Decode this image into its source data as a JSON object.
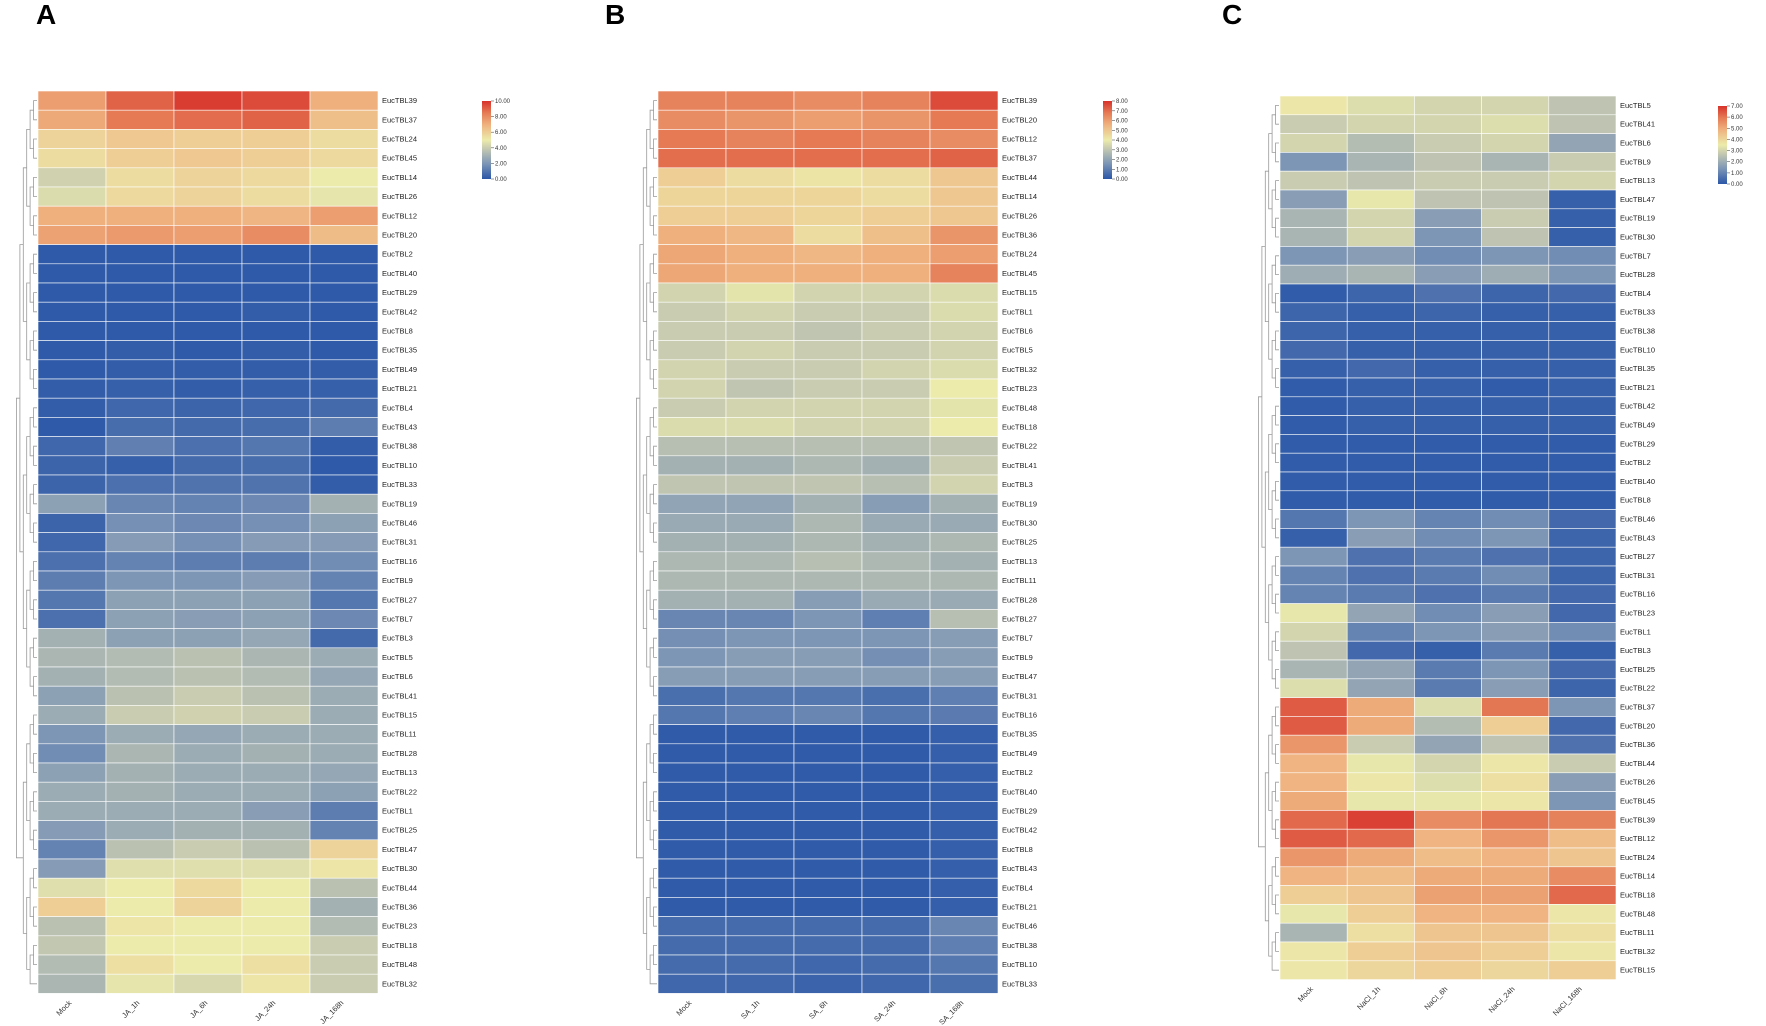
{
  "chart_data": [
    {
      "type": "heatmap",
      "panel": "A",
      "columns": [
        "Mock",
        "JA_1h",
        "JA_6h",
        "JA_24h",
        "JA_168h"
      ],
      "rows": [
        "EucTBL39",
        "EucTBL37",
        "EucTBL24",
        "EucTBL45",
        "EucTBL14",
        "EucTBL26",
        "EucTBL12",
        "EucTBL20",
        "EucTBL2",
        "EucTBL40",
        "EucTBL29",
        "EucTBL42",
        "EucTBL8",
        "EucTBL35",
        "EucTBL49",
        "EucTBL21",
        "EucTBL4",
        "EucTBL43",
        "EucTBL38",
        "EucTBL10",
        "EucTBL33",
        "EucTBL19",
        "EucTBL46",
        "EucTBL31",
        "EucTBL16",
        "EucTBL9",
        "EucTBL27",
        "EucTBL7",
        "EucTBL3",
        "EucTBL5",
        "EucTBL6",
        "EucTBL41",
        "EucTBL15",
        "EucTBL11",
        "EucTBL28",
        "EucTBL13",
        "EucTBL22",
        "EucTBL1",
        "EucTBL25",
        "EucTBL47",
        "EucTBL30",
        "EucTBL44",
        "EucTBL36",
        "EucTBL23",
        "EucTBL18",
        "EucTBL48",
        "EucTBL32"
      ],
      "values": [
        [
          7.5,
          9.0,
          9.8,
          9.5,
          7.0
        ],
        [
          7.2,
          8.5,
          8.8,
          9.0,
          6.5
        ],
        [
          5.8,
          6.2,
          6.0,
          6.0,
          5.5
        ],
        [
          5.5,
          6.0,
          6.2,
          6.0,
          5.6
        ],
        [
          4.2,
          5.5,
          5.8,
          5.6,
          5.0
        ],
        [
          4.5,
          5.6,
          5.8,
          5.5,
          4.8
        ],
        [
          7.0,
          7.0,
          7.0,
          6.8,
          7.5
        ],
        [
          7.4,
          7.6,
          7.5,
          8.0,
          6.6
        ],
        [
          0.1,
          0.1,
          0.1,
          0.1,
          0.1
        ],
        [
          0.1,
          0.1,
          0.1,
          0.1,
          0.1
        ],
        [
          0.1,
          0.1,
          0.1,
          0.1,
          0.1
        ],
        [
          0.1,
          0.1,
          0.1,
          0.2,
          0.1
        ],
        [
          0.1,
          0.1,
          0.1,
          0.1,
          0.1
        ],
        [
          0.1,
          0.2,
          0.1,
          0.2,
          0.1
        ],
        [
          0.1,
          0.2,
          0.2,
          0.2,
          0.2
        ],
        [
          0.2,
          0.3,
          0.2,
          0.3,
          0.3
        ],
        [
          0.2,
          0.5,
          0.4,
          0.5,
          0.6
        ],
        [
          0.1,
          0.7,
          0.6,
          0.7,
          1.2
        ],
        [
          0.5,
          1.3,
          0.8,
          1.0,
          0.2
        ],
        [
          0.4,
          0.3,
          0.6,
          0.7,
          0.1
        ],
        [
          0.4,
          0.8,
          0.9,
          0.9,
          0.2
        ],
        [
          2.4,
          1.5,
          1.4,
          1.6,
          3.0
        ],
        [
          0.4,
          1.8,
          1.6,
          1.8,
          2.4
        ],
        [
          0.5,
          2.2,
          1.8,
          2.2,
          2.2
        ],
        [
          0.8,
          1.4,
          1.2,
          1.2,
          1.7
        ],
        [
          1.2,
          2.0,
          2.0,
          2.2,
          1.4
        ],
        [
          1.0,
          2.4,
          2.4,
          2.4,
          1.0
        ],
        [
          0.8,
          2.4,
          2.3,
          2.4,
          1.6
        ],
        [
          3.0,
          2.4,
          2.4,
          2.6,
          0.6
        ],
        [
          3.2,
          3.4,
          3.6,
          3.2,
          2.8
        ],
        [
          3.0,
          3.4,
          3.6,
          3.4,
          2.6
        ],
        [
          2.4,
          3.6,
          4.0,
          3.6,
          2.8
        ],
        [
          2.8,
          4.0,
          4.2,
          4.0,
          2.8
        ],
        [
          2.0,
          2.8,
          2.6,
          2.8,
          2.8
        ],
        [
          1.7,
          3.2,
          2.8,
          3.0,
          2.8
        ],
        [
          2.4,
          3.0,
          2.8,
          2.8,
          2.6
        ],
        [
          2.8,
          3.0,
          2.8,
          2.8,
          2.4
        ],
        [
          2.8,
          2.8,
          2.8,
          2.3,
          1.2
        ],
        [
          2.2,
          2.8,
          3.0,
          3.0,
          1.4
        ],
        [
          1.4,
          3.6,
          4.0,
          3.6,
          5.8
        ],
        [
          2.2,
          4.6,
          4.6,
          4.6,
          5.2
        ],
        [
          4.6,
          5.0,
          5.6,
          5.0,
          3.6
        ],
        [
          6.0,
          5.0,
          5.8,
          5.0,
          3.0
        ],
        [
          3.6,
          5.2,
          5.0,
          5.0,
          3.4
        ],
        [
          3.8,
          5.0,
          5.0,
          5.0,
          4.0
        ],
        [
          3.4,
          5.4,
          5.0,
          5.4,
          4.0
        ],
        [
          3.2,
          4.8,
          4.4,
          5.2,
          4.0
        ]
      ],
      "colorbar": {
        "min": 0,
        "max": 10,
        "ticks": [
          "10.00",
          "8.00",
          "6.00",
          "4.00",
          "2.00",
          "0.00"
        ]
      }
    },
    {
      "type": "heatmap",
      "panel": "B",
      "columns": [
        "Mock",
        "SA_1h",
        "SA_6h",
        "SA_24h",
        "SA_168h"
      ],
      "rows": [
        "EucTBL39",
        "EucTBL20",
        "EucTBL12",
        "EucTBL37",
        "EucTBL44",
        "EucTBL14",
        "EucTBL26",
        "EucTBL36",
        "EucTBL24",
        "EucTBL45",
        "EucTBL15",
        "EucTBL1",
        "EucTBL6",
        "EucTBL5",
        "EucTBL32",
        "EucTBL23",
        "EucTBL48",
        "EucTBL18",
        "EucTBL22",
        "EucTBL41",
        "EucTBL3",
        "EucTBL19",
        "EucTBL30",
        "EucTBL25",
        "EucTBL13",
        "EucTBL11",
        "EucTBL28",
        "EucTBL27",
        "EucTBL7",
        "EucTBL9",
        "EucTBL47",
        "EucTBL31",
        "EucTBL16",
        "EucTBL35",
        "EucTBL49",
        "EucTBL2",
        "EucTBL40",
        "EucTBL29",
        "EucTBL42",
        "EucTBL8",
        "EucTBL43",
        "EucTBL4",
        "EucTBL21",
        "EucTBL46",
        "EucTBL38",
        "EucTBL10",
        "EucTBL33"
      ],
      "values": [
        [
          6.6,
          6.6,
          6.4,
          6.6,
          7.6
        ],
        [
          6.4,
          6.2,
          6.0,
          6.2,
          6.8
        ],
        [
          6.8,
          6.6,
          6.8,
          6.6,
          6.4
        ],
        [
          7.0,
          7.0,
          7.0,
          7.0,
          7.2
        ],
        [
          4.8,
          4.4,
          4.2,
          4.4,
          5.0
        ],
        [
          4.6,
          4.6,
          4.6,
          4.4,
          5.0
        ],
        [
          4.8,
          4.8,
          4.6,
          4.8,
          5.0
        ],
        [
          5.6,
          5.4,
          4.4,
          5.2,
          6.2
        ],
        [
          5.8,
          5.6,
          5.4,
          5.6,
          6.0
        ],
        [
          5.8,
          5.6,
          5.6,
          5.6,
          6.6
        ],
        [
          3.4,
          3.8,
          3.4,
          3.4,
          3.6
        ],
        [
          3.2,
          3.4,
          3.2,
          3.2,
          3.6
        ],
        [
          3.2,
          3.2,
          3.0,
          3.2,
          3.4
        ],
        [
          3.2,
          3.4,
          3.2,
          3.2,
          3.4
        ],
        [
          3.4,
          3.2,
          3.2,
          3.4,
          3.6
        ],
        [
          3.4,
          3.0,
          3.2,
          3.2,
          4.0
        ],
        [
          3.2,
          3.4,
          3.4,
          3.4,
          3.8
        ],
        [
          3.6,
          3.6,
          3.4,
          3.4,
          4.0
        ],
        [
          2.8,
          2.8,
          2.8,
          2.8,
          3.0
        ],
        [
          2.4,
          2.4,
          2.6,
          2.4,
          3.2
        ],
        [
          3.0,
          3.0,
          3.0,
          2.8,
          3.4
        ],
        [
          2.0,
          2.0,
          2.4,
          1.8,
          2.4
        ],
        [
          2.2,
          2.2,
          2.6,
          2.2,
          2.2
        ],
        [
          2.4,
          2.4,
          2.6,
          2.4,
          2.6
        ],
        [
          2.6,
          2.6,
          2.8,
          2.6,
          2.4
        ],
        [
          2.6,
          2.6,
          2.6,
          2.6,
          2.6
        ],
        [
          2.4,
          2.4,
          1.8,
          2.2,
          2.2
        ],
        [
          1.2,
          1.2,
          1.6,
          1.0,
          2.8
        ],
        [
          1.4,
          1.6,
          1.6,
          1.6,
          1.8
        ],
        [
          1.6,
          1.8,
          1.8,
          1.4,
          1.8
        ],
        [
          1.8,
          1.8,
          1.8,
          1.8,
          1.8
        ],
        [
          0.6,
          0.8,
          0.8,
          0.6,
          1.0
        ],
        [
          0.8,
          1.0,
          1.2,
          0.8,
          0.9
        ],
        [
          0.1,
          0.1,
          0.1,
          0.1,
          0.2
        ],
        [
          0.1,
          0.1,
          0.1,
          0.1,
          0.2
        ],
        [
          0.1,
          0.1,
          0.1,
          0.1,
          0.2
        ],
        [
          0.1,
          0.1,
          0.1,
          0.1,
          0.2
        ],
        [
          0.1,
          0.1,
          0.1,
          0.1,
          0.2
        ],
        [
          0.1,
          0.1,
          0.1,
          0.1,
          0.2
        ],
        [
          0.1,
          0.1,
          0.1,
          0.1,
          0.2
        ],
        [
          0.1,
          0.1,
          0.1,
          0.1,
          0.2
        ],
        [
          0.1,
          0.1,
          0.1,
          0.1,
          0.2
        ],
        [
          0.1,
          0.1,
          0.1,
          0.1,
          0.2
        ],
        [
          0.5,
          0.5,
          0.5,
          0.5,
          1.2
        ],
        [
          0.5,
          0.5,
          0.5,
          0.5,
          1.0
        ],
        [
          0.5,
          0.5,
          0.4,
          0.5,
          0.8
        ],
        [
          0.4,
          0.4,
          0.3,
          0.4,
          0.6
        ]
      ],
      "colorbar": {
        "min": 0,
        "max": 8,
        "ticks": [
          "8.00",
          "7.00",
          "6.00",
          "5.00",
          "4.00",
          "3.00",
          "2.00",
          "1.00",
          "0.00"
        ]
      }
    },
    {
      "type": "heatmap",
      "panel": "C",
      "columns": [
        "Mock",
        "NaCl_1h",
        "NaCl_6h",
        "NaCl_24h",
        "NaCl_168h"
      ],
      "rows": [
        "EucTBL5",
        "EucTBL41",
        "EucTBL6",
        "EucTBL9",
        "EucTBL13",
        "EucTBL47",
        "EucTBL19",
        "EucTBL30",
        "EucTBL7",
        "EucTBL28",
        "EucTBL4",
        "EucTBL33",
        "EucTBL38",
        "EucTBL10",
        "EucTBL35",
        "EucTBL21",
        "EucTBL42",
        "EucTBL49",
        "EucTBL29",
        "EucTBL2",
        "EucTBL40",
        "EucTBL8",
        "EucTBL46",
        "EucTBL43",
        "EucTBL27",
        "EucTBL31",
        "EucTBL16",
        "EucTBL23",
        "EucTBL1",
        "EucTBL3",
        "EucTBL25",
        "EucTBL22",
        "EucTBL37",
        "EucTBL20",
        "EucTBL36",
        "EucTBL44",
        "EucTBL26",
        "EucTBL45",
        "EucTBL39",
        "EucTBL12",
        "EucTBL24",
        "EucTBL14",
        "EucTBL18",
        "EucTBL48",
        "EucTBL11",
        "EucTBL32",
        "EucTBL15"
      ],
      "values": [
        [
          3.6,
          3.2,
          3.0,
          3.0,
          2.6
        ],
        [
          2.8,
          3.0,
          3.0,
          3.2,
          2.6
        ],
        [
          3.0,
          2.4,
          2.8,
          3.0,
          1.8
        ],
        [
          1.4,
          2.2,
          2.6,
          2.2,
          2.8
        ],
        [
          2.8,
          2.6,
          2.8,
          2.8,
          3.0
        ],
        [
          1.6,
          3.4,
          2.6,
          2.6,
          0.2
        ],
        [
          2.2,
          3.0,
          1.6,
          2.8,
          0.2
        ],
        [
          2.2,
          3.0,
          1.4,
          2.6,
          0.2
        ],
        [
          1.4,
          1.6,
          1.2,
          1.4,
          1.2
        ],
        [
          2.0,
          2.2,
          1.6,
          2.0,
          1.4
        ],
        [
          0.1,
          0.3,
          0.6,
          0.3,
          0.4
        ],
        [
          0.3,
          0.2,
          0.3,
          0.2,
          0.2
        ],
        [
          0.3,
          0.2,
          0.2,
          0.2,
          0.2
        ],
        [
          0.4,
          0.2,
          0.2,
          0.2,
          0.2
        ],
        [
          0.2,
          0.4,
          0.2,
          0.2,
          0.2
        ],
        [
          0.1,
          0.2,
          0.2,
          0.1,
          0.2
        ],
        [
          0.1,
          0.2,
          0.2,
          0.2,
          0.2
        ],
        [
          0.1,
          0.2,
          0.2,
          0.2,
          0.2
        ],
        [
          0.1,
          0.1,
          0.1,
          0.1,
          0.1
        ],
        [
          0.1,
          0.1,
          0.1,
          0.1,
          0.1
        ],
        [
          0.1,
          0.1,
          0.1,
          0.1,
          0.1
        ],
        [
          0.1,
          0.1,
          0.1,
          0.1,
          0.1
        ],
        [
          0.7,
          1.4,
          1.0,
          1.2,
          0.4
        ],
        [
          0.2,
          1.6,
          1.2,
          1.4,
          0.3
        ],
        [
          1.4,
          0.6,
          0.8,
          0.6,
          0.3
        ],
        [
          1.0,
          0.6,
          0.8,
          1.2,
          0.3
        ],
        [
          1.0,
          0.8,
          0.6,
          0.8,
          0.4
        ],
        [
          3.4,
          1.8,
          1.2,
          1.6,
          0.4
        ],
        [
          3.0,
          1.0,
          1.4,
          1.6,
          1.2
        ],
        [
          2.6,
          0.4,
          0.2,
          0.8,
          0.2
        ],
        [
          2.2,
          1.8,
          0.8,
          1.4,
          0.4
        ],
        [
          3.2,
          1.8,
          0.8,
          1.6,
          0.3
        ],
        [
          6.4,
          5.0,
          3.2,
          6.0,
          1.4
        ],
        [
          6.4,
          5.0,
          2.4,
          4.2,
          0.4
        ],
        [
          5.4,
          2.8,
          1.8,
          2.6,
          0.6
        ],
        [
          4.8,
          3.4,
          3.0,
          3.6,
          2.8
        ],
        [
          4.8,
          3.6,
          3.2,
          3.8,
          1.6
        ],
        [
          5.0,
          3.4,
          3.4,
          3.6,
          1.4
        ],
        [
          6.2,
          6.8,
          5.6,
          6.0,
          5.8
        ],
        [
          6.4,
          6.2,
          4.8,
          5.4,
          4.6
        ],
        [
          5.4,
          5.0,
          4.6,
          4.8,
          4.4
        ],
        [
          4.8,
          4.6,
          5.0,
          5.0,
          5.6
        ],
        [
          4.2,
          4.4,
          5.2,
          5.2,
          6.2
        ],
        [
          3.4,
          4.2,
          4.8,
          4.8,
          3.6
        ],
        [
          2.2,
          3.8,
          4.4,
          4.4,
          3.8
        ],
        [
          3.6,
          4.2,
          4.4,
          4.2,
          3.6
        ],
        [
          3.6,
          4.0,
          4.2,
          4.0,
          4.2
        ]
      ],
      "colorbar": {
        "min": 0,
        "max": 7,
        "ticks": [
          "7.00",
          "6.00",
          "5.00",
          "4.00",
          "3.00",
          "2.00",
          "1.00",
          "0.00"
        ]
      }
    }
  ],
  "colors": {
    "low": "#2b57a8",
    "mid": "#ecebab",
    "high": "#d7322b"
  }
}
